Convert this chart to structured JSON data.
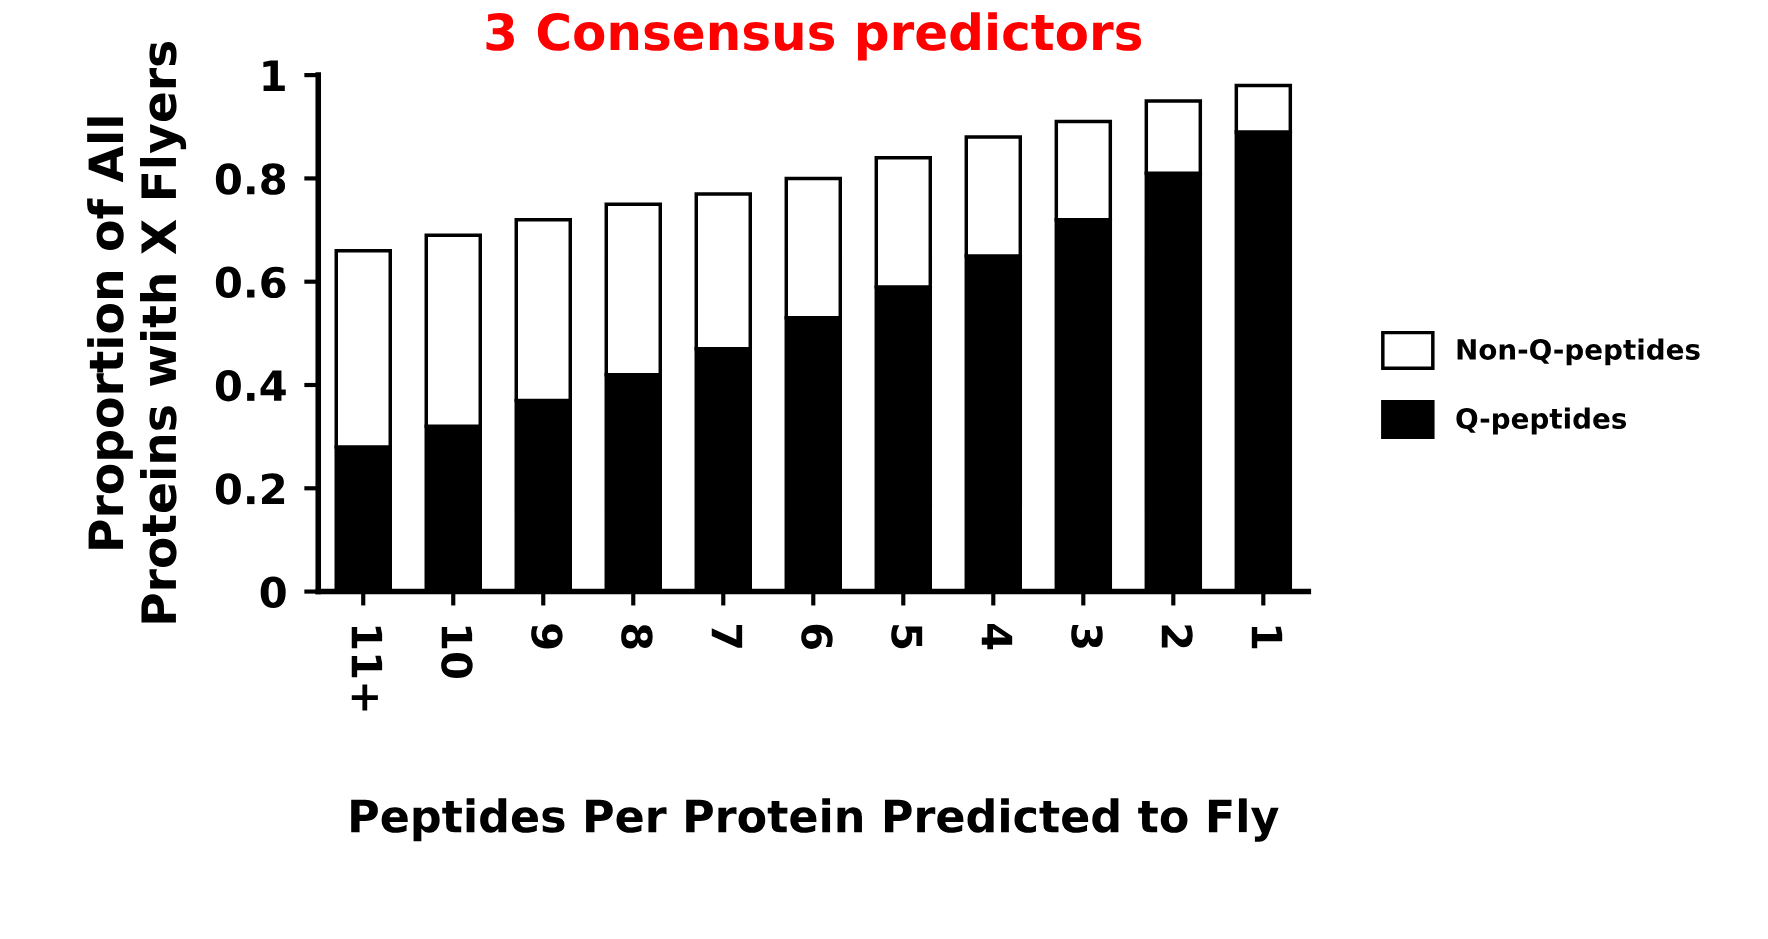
{
  "chart_data": {
    "type": "bar",
    "title": "3 Consensus predictors",
    "xlabel": "Peptides Per Protein Predicted to Fly",
    "ylabel": "Proportion of All\nProteins with X Flyers",
    "categories": [
      "11+",
      "10",
      "9",
      "8",
      "7",
      "6",
      "5",
      "4",
      "3",
      "2",
      "1"
    ],
    "stacked": true,
    "series": [
      {
        "name": "Q-peptides",
        "color": "#000000",
        "values": [
          0.28,
          0.32,
          0.37,
          0.42,
          0.47,
          0.53,
          0.59,
          0.65,
          0.72,
          0.81,
          0.89
        ]
      },
      {
        "name": "Non-Q-peptides",
        "color": "#ffffff",
        "values": [
          0.38,
          0.37,
          0.35,
          0.33,
          0.3,
          0.27,
          0.25,
          0.23,
          0.19,
          0.14,
          0.09
        ]
      }
    ],
    "ylim": [
      0,
      1
    ],
    "yticks": [
      0,
      0.2,
      0.4,
      0.6,
      0.8,
      1
    ],
    "grid": false,
    "legend": "right"
  }
}
